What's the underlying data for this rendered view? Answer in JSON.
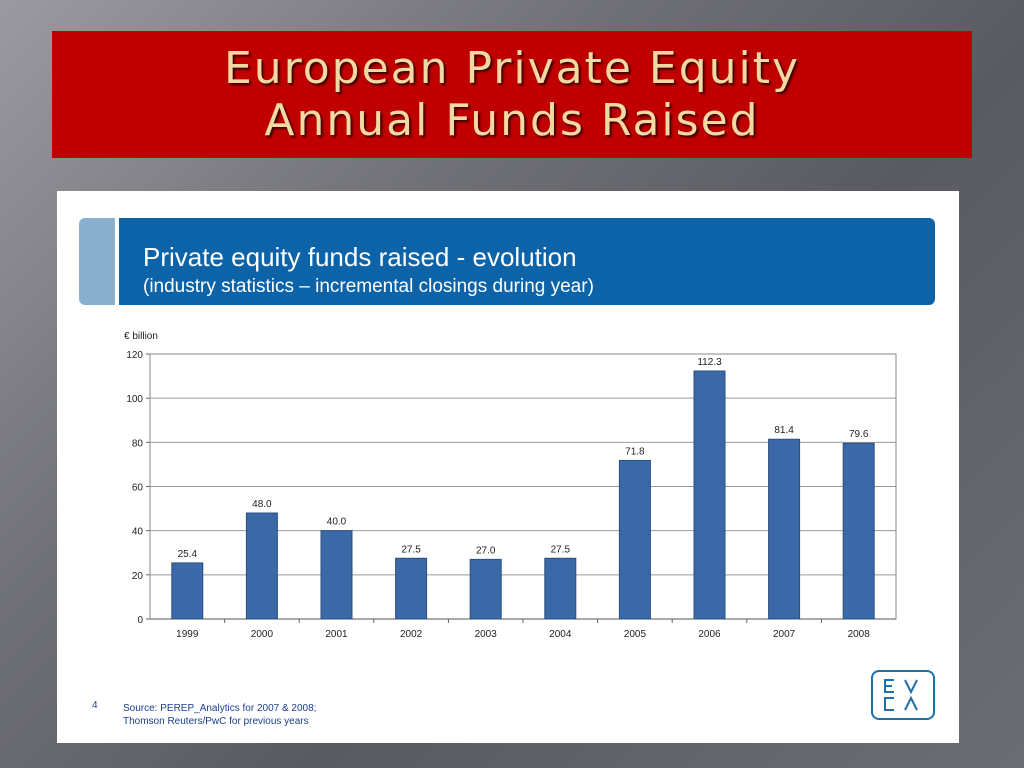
{
  "slide": {
    "title_line1": "European Private Equity",
    "title_line2": "Annual Funds Raised"
  },
  "panel": {
    "header_title": "Private equity funds raised - evolution",
    "header_subtitle": "(industry statistics – incremental closings during year)",
    "footnote_number": "4",
    "footnote_line1": "Source: PEREP_Analytics for 2007 & 2008;",
    "footnote_line2": "Thomson Reuters/PwC for previous years",
    "logo_text": "EVCA"
  },
  "colors": {
    "banner": "#c00000",
    "header": "#0d63a8",
    "bar": "#3b68a6",
    "title_text": "#f1d9a3"
  },
  "chart_data": {
    "type": "bar",
    "unit_label": "€ billion",
    "categories": [
      "1999",
      "2000",
      "2001",
      "2002",
      "2003",
      "2004",
      "2005",
      "2006",
      "2007",
      "2008"
    ],
    "values": [
      25.4,
      48.0,
      40.0,
      27.5,
      27.0,
      27.5,
      71.8,
      112.3,
      81.4,
      79.6
    ],
    "value_labels": [
      "25.4",
      "48.0",
      "40.0",
      "27.5",
      "27.0",
      "27.5",
      "71.8",
      "112.3",
      "81.4",
      "79.6"
    ],
    "y_ticks": [
      0,
      20,
      40,
      60,
      80,
      100,
      120
    ],
    "ylim": [
      0,
      120
    ],
    "grid": true,
    "legend": "none"
  }
}
